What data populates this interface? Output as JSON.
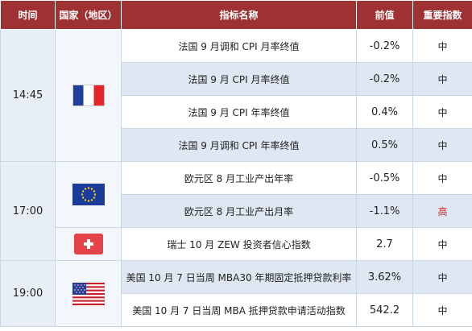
{
  "headers": [
    "时间",
    "国家（地区）",
    "指标名称",
    "前值",
    "重要指数"
  ],
  "groups": [
    {
      "time": "14:45",
      "flag": "france-flag-icon",
      "rows": [
        {
          "name": "法国 9 月调和 CPI 月率终值",
          "prev": "-0.2%",
          "importance": "中"
        },
        {
          "name": "法国 9 月 CPI 月率终值",
          "prev": "-0.2%",
          "importance": "中"
        },
        {
          "name": "法国 9 月 CPI 年率终值",
          "prev": "0.4%",
          "importance": "中"
        },
        {
          "name": "法国 9 月调和 CPI 年率终值",
          "prev": "0.5%",
          "importance": "中"
        }
      ]
    },
    {
      "time": "17:00",
      "rows": [
        {
          "name": "欧元区 8 月工业产出年率",
          "prev": "-0.5%",
          "importance": "中",
          "flag": "eu-flag-icon"
        },
        {
          "name": "欧元区 8 月工业产出月率",
          "prev": "-1.1%",
          "importance": "高"
        },
        {
          "name": "瑞士 10 月 ZEW 投资者信心指数",
          "prev": "2.7",
          "importance": "中",
          "flag": "switzerland-flag-icon"
        }
      ]
    },
    {
      "time": "19:00",
      "flag": "usa-flag-icon",
      "rows": [
        {
          "name": "美国 10 月 7 日当周 MBA30 年期固定抵押贷款利率",
          "prev": "3.62%",
          "importance": "中"
        },
        {
          "name": "美国 10 月 7 日当周 MBA 抵押贷款申请活动指数",
          "prev": "542.2",
          "importance": "中"
        }
      ]
    }
  ],
  "colors": {
    "header_bg": "#9e3232",
    "row_alt": "#dfe8f2",
    "high": "#d9261c"
  }
}
